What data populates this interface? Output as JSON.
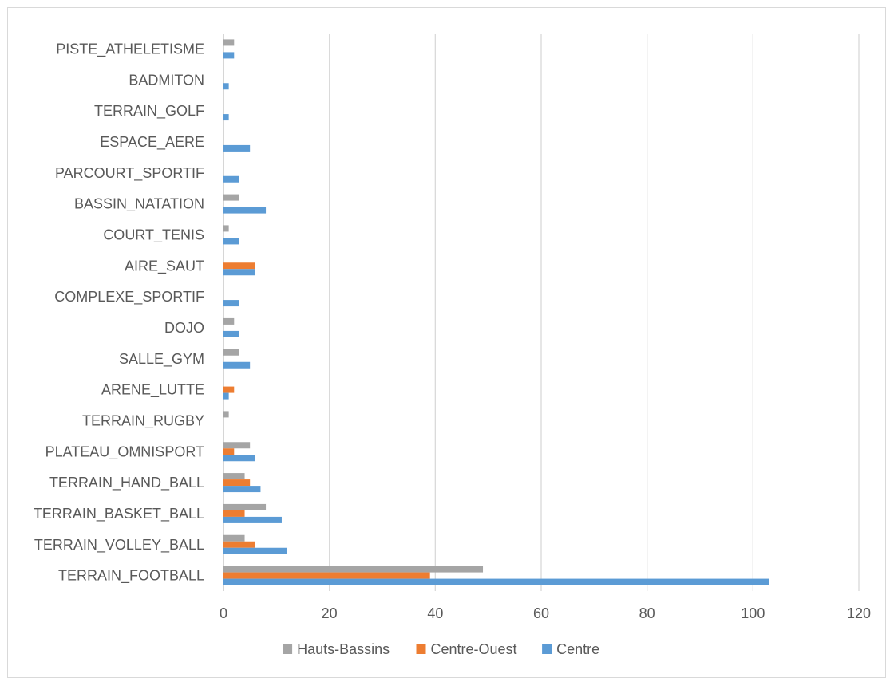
{
  "chart_data": {
    "type": "bar",
    "orientation": "horizontal",
    "categories": [
      "TERRAIN_FOOTBALL",
      "TERRAIN_VOLLEY_BALL",
      "TERRAIN_BASKET_BALL",
      "TERRAIN_HAND_BALL",
      "PLATEAU_OMNISPORT",
      "TERRAIN_RUGBY",
      "ARENE_LUTTE",
      "SALLE_GYM",
      "DOJO",
      "COMPLEXE_SPORTIF",
      "AIRE_SAUT",
      "COURT_TENIS",
      "BASSIN_NATATION",
      "PARCOURT_SPORTIF",
      "ESPACE_AERE",
      "TERRAIN_GOLF",
      "BADMITON",
      "PISTE_ATHELETISME"
    ],
    "series": [
      {
        "name": "Hauts-Bassins",
        "color": "#a5a5a5",
        "values": [
          49,
          4,
          8,
          4,
          5,
          1,
          0,
          3,
          2,
          0,
          0,
          1,
          3,
          0,
          0,
          0,
          0,
          2
        ]
      },
      {
        "name": "Centre-Ouest",
        "color": "#ed7d31",
        "values": [
          39,
          6,
          4,
          5,
          2,
          0,
          2,
          0,
          0,
          0,
          6,
          0,
          0,
          0,
          0,
          0,
          0,
          0
        ]
      },
      {
        "name": "Centre",
        "color": "#5b9bd5",
        "values": [
          103,
          12,
          11,
          7,
          6,
          0,
          1,
          5,
          3,
          3,
          6,
          3,
          8,
          3,
          5,
          1,
          1,
          2
        ]
      }
    ],
    "xlim": [
      0,
      120
    ],
    "xticks": [
      "0",
      "20",
      "40",
      "60",
      "80",
      "100",
      "120"
    ],
    "grid": "vertical",
    "legend": "bottom",
    "title": "",
    "xlabel": "",
    "ylabel": ""
  }
}
